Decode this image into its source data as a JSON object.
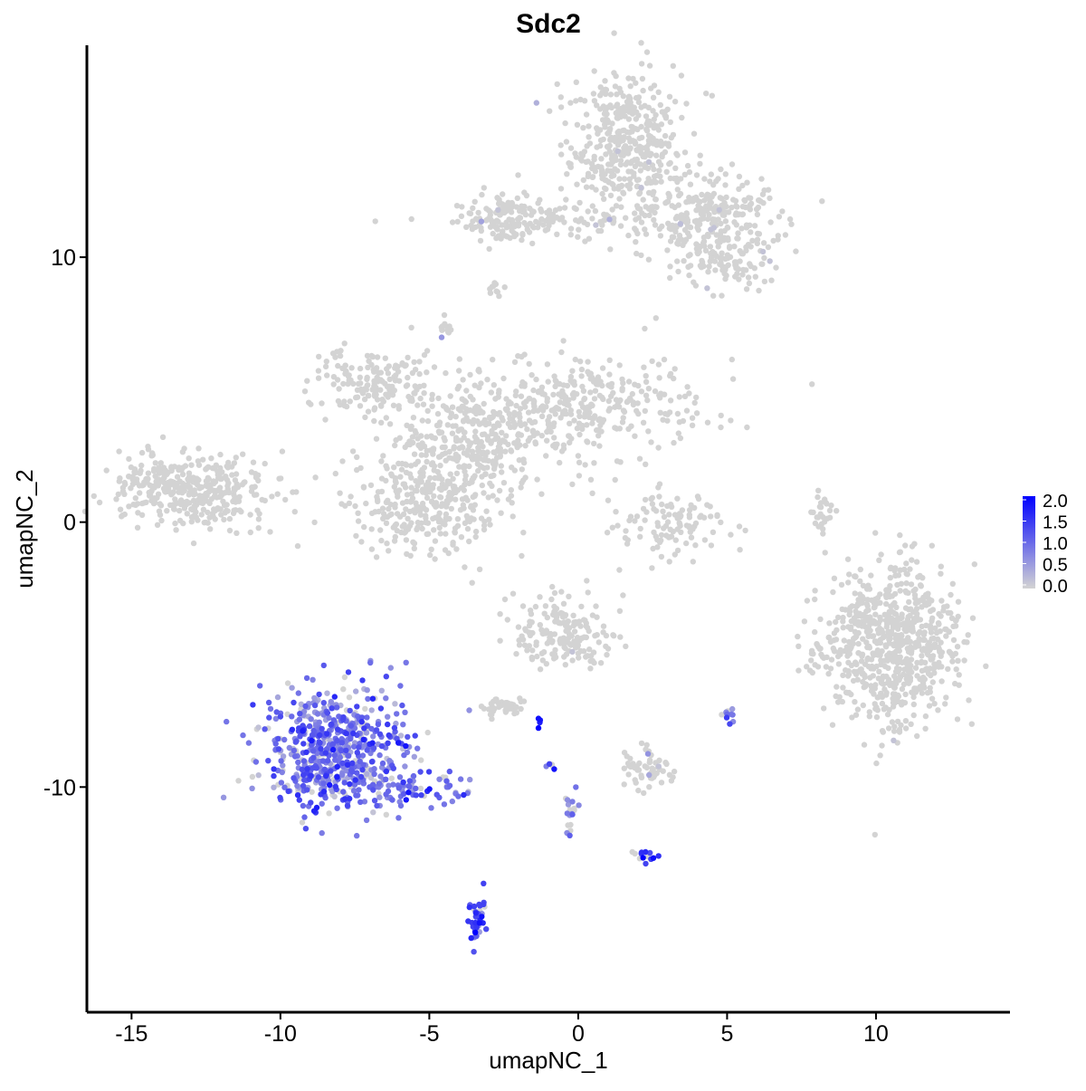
{
  "chart_data": {
    "type": "scatter",
    "title": "Sdc2",
    "xlabel": "umapNC_1",
    "ylabel": "umapNC_2",
    "xlim": [
      -16.5,
      14.5
    ],
    "ylim": [
      -18.5,
      18.0
    ],
    "x_ticks": [
      -15,
      -10,
      -5,
      0,
      5,
      10
    ],
    "y_ticks": [
      -10,
      0,
      10
    ],
    "x_tick_labels": [
      "-15",
      "-10",
      "-5",
      "0",
      "5",
      "10"
    ],
    "y_tick_labels": [
      "-10",
      "0",
      "10"
    ],
    "grid": false,
    "legend": {
      "title": "",
      "placement": "right",
      "labels": [
        "2.0",
        "1.5",
        "1.0",
        "0.5",
        "0.0"
      ],
      "min": 0.0,
      "max": 2.0
    },
    "colors": {
      "low": "#d3d3d3",
      "high": "#0000ff",
      "axis": "#000000"
    },
    "point_alpha_note": "",
    "clusters": [
      {
        "id": "top-right-upper",
        "cx": 1.6,
        "cy": 14.2,
        "sx": 0.9,
        "sy": 1.3,
        "n": 420,
        "expr": 0.0,
        "expr_frac": 0.01
      },
      {
        "id": "top-right-arm",
        "cx": 4.4,
        "cy": 11.4,
        "sx": 1.2,
        "sy": 0.9,
        "n": 300,
        "expr": 0.0,
        "expr_frac": 0.01
      },
      {
        "id": "top-right-tip",
        "cx": 5.2,
        "cy": 9.6,
        "sx": 0.6,
        "sy": 0.5,
        "n": 60,
        "expr": 0.0,
        "expr_frac": 0.03
      },
      {
        "id": "top-bridge",
        "cx": -0.8,
        "cy": 11.3,
        "sx": 1.6,
        "sy": 0.35,
        "n": 90,
        "expr": 0.0,
        "expr_frac": 0.02
      },
      {
        "id": "top-left-blob",
        "cx": -2.4,
        "cy": 11.5,
        "sx": 0.7,
        "sy": 0.5,
        "n": 110,
        "expr": 0.0,
        "expr_frac": 0.01
      },
      {
        "id": "top-left-small",
        "cx": -2.7,
        "cy": 8.8,
        "sx": 0.2,
        "sy": 0.2,
        "n": 10,
        "expr": 0.0,
        "expr_frac": 0.0
      },
      {
        "id": "mid-left-arm",
        "cx": -6.8,
        "cy": 5.3,
        "sx": 0.9,
        "sy": 0.6,
        "n": 160,
        "expr": 0.0,
        "expr_frac": 0.0
      },
      {
        "id": "mid-core",
        "cx": -3.4,
        "cy": 3.2,
        "sx": 1.3,
        "sy": 1.0,
        "n": 300,
        "expr": 0.0,
        "expr_frac": 0.0
      },
      {
        "id": "mid-right-arm",
        "cx": 0.2,
        "cy": 4.4,
        "sx": 2.0,
        "sy": 1.0,
        "n": 320,
        "expr": 0.0,
        "expr_frac": 0.0
      },
      {
        "id": "mid-lower-lobe",
        "cx": -5.0,
        "cy": 0.8,
        "sx": 1.3,
        "sy": 1.0,
        "n": 330,
        "expr": 0.0,
        "expr_frac": 0.0
      },
      {
        "id": "mid-top-small",
        "cx": -4.4,
        "cy": 7.3,
        "sx": 0.2,
        "sy": 0.2,
        "n": 12,
        "expr": 0.0,
        "expr_frac": 0.2
      },
      {
        "id": "far-left",
        "cx": -13.0,
        "cy": 1.2,
        "sx": 1.3,
        "sy": 0.7,
        "n": 380,
        "expr": 0.0,
        "expr_frac": 0.0
      },
      {
        "id": "center-crescent",
        "cx": 3.1,
        "cy": -0.1,
        "sx": 0.9,
        "sy": 0.6,
        "n": 110,
        "expr": 0.0,
        "expr_frac": 0.0
      },
      {
        "id": "right-small-strip",
        "cx": 8.2,
        "cy": 0.2,
        "sx": 0.2,
        "sy": 0.5,
        "n": 25,
        "expr": 0.0,
        "expr_frac": 0.0
      },
      {
        "id": "right-big",
        "cx": 10.6,
        "cy": -4.6,
        "sx": 1.1,
        "sy": 1.5,
        "n": 700,
        "expr": 0.0,
        "expr_frac": 0.005
      },
      {
        "id": "right-big-side",
        "cx": 8.0,
        "cy": -5.0,
        "sx": 0.3,
        "sy": 0.4,
        "n": 20,
        "expr": 0.0,
        "expr_frac": 0.0
      },
      {
        "id": "lower-center",
        "cx": -0.5,
        "cy": -4.2,
        "sx": 0.8,
        "sy": 0.7,
        "n": 180,
        "expr": 0.0,
        "expr_frac": 0.01
      },
      {
        "id": "lower-center-small",
        "cx": -2.5,
        "cy": -7.0,
        "sx": 0.4,
        "sy": 0.2,
        "n": 40,
        "expr": 0.0,
        "expr_frac": 0.0
      },
      {
        "id": "lower-right-small",
        "cx": 2.4,
        "cy": -9.3,
        "sx": 0.5,
        "sy": 0.4,
        "n": 60,
        "expr": 0.0,
        "expr_frac": 0.05
      },
      {
        "id": "sdc2-main",
        "cx": -8.2,
        "cy": -8.5,
        "sx": 1.2,
        "sy": 1.1,
        "n": 650,
        "expr": 0.9,
        "expr_frac": 0.85
      },
      {
        "id": "sdc2-tail",
        "cx": -5.3,
        "cy": -10.0,
        "sx": 0.8,
        "sy": 0.3,
        "n": 60,
        "expr": 1.0,
        "expr_frac": 0.9
      },
      {
        "id": "sdc2-bottom",
        "cx": -3.4,
        "cy": -15.0,
        "sx": 0.15,
        "sy": 0.5,
        "n": 35,
        "expr": 1.3,
        "expr_frac": 0.9
      },
      {
        "id": "small-purple-1",
        "cx": 5.1,
        "cy": -7.3,
        "sx": 0.1,
        "sy": 0.2,
        "n": 12,
        "expr": 1.2,
        "expr_frac": 0.8
      },
      {
        "id": "small-purple-2",
        "cx": 2.3,
        "cy": -12.6,
        "sx": 0.25,
        "sy": 0.1,
        "n": 14,
        "expr": 1.3,
        "expr_frac": 0.8
      },
      {
        "id": "small-purple-3",
        "cx": -0.3,
        "cy": -11.0,
        "sx": 0.15,
        "sy": 0.4,
        "n": 18,
        "expr": 0.8,
        "expr_frac": 0.7
      },
      {
        "id": "small-purple-4",
        "cx": -0.9,
        "cy": -9.2,
        "sx": 0.08,
        "sy": 0.1,
        "n": 5,
        "expr": 1.4,
        "expr_frac": 0.8
      },
      {
        "id": "small-purple-5",
        "cx": -1.3,
        "cy": -7.5,
        "sx": 0.05,
        "sy": 0.1,
        "n": 4,
        "expr": 1.5,
        "expr_frac": 1.0
      }
    ]
  }
}
